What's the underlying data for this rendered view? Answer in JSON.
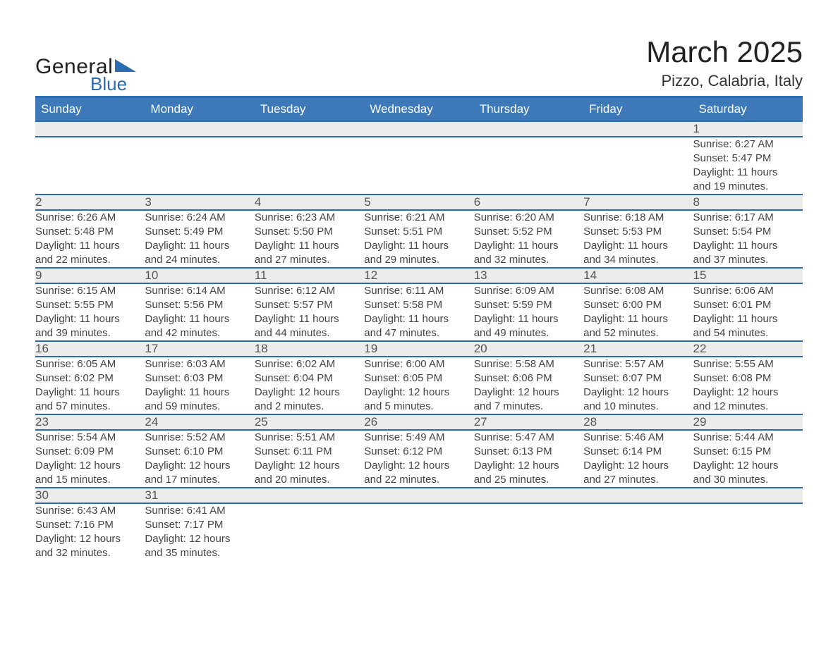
{
  "colors": {
    "brand_blue": "#2b6bb0",
    "header_blue": "#3d78b8",
    "daynum_bg": "#ececec",
    "text": "#333333",
    "text_muted": "#555555",
    "background": "#ffffff"
  },
  "typography": {
    "base_family": "Arial, Helvetica, sans-serif",
    "title_fontsize_pt": 32,
    "location_fontsize_pt": 17,
    "header_fontsize_pt": 13,
    "daynum_fontsize_pt": 13,
    "body_fontsize_pt": 11
  },
  "logo": {
    "word1": "General",
    "word2": "Blue",
    "triangle_color": "#2b6bb0"
  },
  "title": {
    "month_year": "March 2025",
    "location": "Pizzo, Calabria, Italy"
  },
  "calendar": {
    "weekdays": [
      "Sunday",
      "Monday",
      "Tuesday",
      "Wednesday",
      "Thursday",
      "Friday",
      "Saturday"
    ],
    "weeks": [
      {
        "nums": [
          "",
          "",
          "",
          "",
          "",
          "",
          "1"
        ],
        "cells": [
          [],
          [],
          [],
          [],
          [],
          [],
          [
            "Sunrise: 6:27 AM",
            "Sunset: 5:47 PM",
            "Daylight: 11 hours",
            "and 19 minutes."
          ]
        ]
      },
      {
        "nums": [
          "2",
          "3",
          "4",
          "5",
          "6",
          "7",
          "8"
        ],
        "cells": [
          [
            "Sunrise: 6:26 AM",
            "Sunset: 5:48 PM",
            "Daylight: 11 hours",
            "and 22 minutes."
          ],
          [
            "Sunrise: 6:24 AM",
            "Sunset: 5:49 PM",
            "Daylight: 11 hours",
            "and 24 minutes."
          ],
          [
            "Sunrise: 6:23 AM",
            "Sunset: 5:50 PM",
            "Daylight: 11 hours",
            "and 27 minutes."
          ],
          [
            "Sunrise: 6:21 AM",
            "Sunset: 5:51 PM",
            "Daylight: 11 hours",
            "and 29 minutes."
          ],
          [
            "Sunrise: 6:20 AM",
            "Sunset: 5:52 PM",
            "Daylight: 11 hours",
            "and 32 minutes."
          ],
          [
            "Sunrise: 6:18 AM",
            "Sunset: 5:53 PM",
            "Daylight: 11 hours",
            "and 34 minutes."
          ],
          [
            "Sunrise: 6:17 AM",
            "Sunset: 5:54 PM",
            "Daylight: 11 hours",
            "and 37 minutes."
          ]
        ]
      },
      {
        "nums": [
          "9",
          "10",
          "11",
          "12",
          "13",
          "14",
          "15"
        ],
        "cells": [
          [
            "Sunrise: 6:15 AM",
            "Sunset: 5:55 PM",
            "Daylight: 11 hours",
            "and 39 minutes."
          ],
          [
            "Sunrise: 6:14 AM",
            "Sunset: 5:56 PM",
            "Daylight: 11 hours",
            "and 42 minutes."
          ],
          [
            "Sunrise: 6:12 AM",
            "Sunset: 5:57 PM",
            "Daylight: 11 hours",
            "and 44 minutes."
          ],
          [
            "Sunrise: 6:11 AM",
            "Sunset: 5:58 PM",
            "Daylight: 11 hours",
            "and 47 minutes."
          ],
          [
            "Sunrise: 6:09 AM",
            "Sunset: 5:59 PM",
            "Daylight: 11 hours",
            "and 49 minutes."
          ],
          [
            "Sunrise: 6:08 AM",
            "Sunset: 6:00 PM",
            "Daylight: 11 hours",
            "and 52 minutes."
          ],
          [
            "Sunrise: 6:06 AM",
            "Sunset: 6:01 PM",
            "Daylight: 11 hours",
            "and 54 minutes."
          ]
        ]
      },
      {
        "nums": [
          "16",
          "17",
          "18",
          "19",
          "20",
          "21",
          "22"
        ],
        "cells": [
          [
            "Sunrise: 6:05 AM",
            "Sunset: 6:02 PM",
            "Daylight: 11 hours",
            "and 57 minutes."
          ],
          [
            "Sunrise: 6:03 AM",
            "Sunset: 6:03 PM",
            "Daylight: 11 hours",
            "and 59 minutes."
          ],
          [
            "Sunrise: 6:02 AM",
            "Sunset: 6:04 PM",
            "Daylight: 12 hours",
            "and 2 minutes."
          ],
          [
            "Sunrise: 6:00 AM",
            "Sunset: 6:05 PM",
            "Daylight: 12 hours",
            "and 5 minutes."
          ],
          [
            "Sunrise: 5:58 AM",
            "Sunset: 6:06 PM",
            "Daylight: 12 hours",
            "and 7 minutes."
          ],
          [
            "Sunrise: 5:57 AM",
            "Sunset: 6:07 PM",
            "Daylight: 12 hours",
            "and 10 minutes."
          ],
          [
            "Sunrise: 5:55 AM",
            "Sunset: 6:08 PM",
            "Daylight: 12 hours",
            "and 12 minutes."
          ]
        ]
      },
      {
        "nums": [
          "23",
          "24",
          "25",
          "26",
          "27",
          "28",
          "29"
        ],
        "cells": [
          [
            "Sunrise: 5:54 AM",
            "Sunset: 6:09 PM",
            "Daylight: 12 hours",
            "and 15 minutes."
          ],
          [
            "Sunrise: 5:52 AM",
            "Sunset: 6:10 PM",
            "Daylight: 12 hours",
            "and 17 minutes."
          ],
          [
            "Sunrise: 5:51 AM",
            "Sunset: 6:11 PM",
            "Daylight: 12 hours",
            "and 20 minutes."
          ],
          [
            "Sunrise: 5:49 AM",
            "Sunset: 6:12 PM",
            "Daylight: 12 hours",
            "and 22 minutes."
          ],
          [
            "Sunrise: 5:47 AM",
            "Sunset: 6:13 PM",
            "Daylight: 12 hours",
            "and 25 minutes."
          ],
          [
            "Sunrise: 5:46 AM",
            "Sunset: 6:14 PM",
            "Daylight: 12 hours",
            "and 27 minutes."
          ],
          [
            "Sunrise: 5:44 AM",
            "Sunset: 6:15 PM",
            "Daylight: 12 hours",
            "and 30 minutes."
          ]
        ]
      },
      {
        "nums": [
          "30",
          "31",
          "",
          "",
          "",
          "",
          ""
        ],
        "cells": [
          [
            "Sunrise: 6:43 AM",
            "Sunset: 7:16 PM",
            "Daylight: 12 hours",
            "and 32 minutes."
          ],
          [
            "Sunrise: 6:41 AM",
            "Sunset: 7:17 PM",
            "Daylight: 12 hours",
            "and 35 minutes."
          ],
          [],
          [],
          [],
          [],
          []
        ]
      }
    ]
  }
}
